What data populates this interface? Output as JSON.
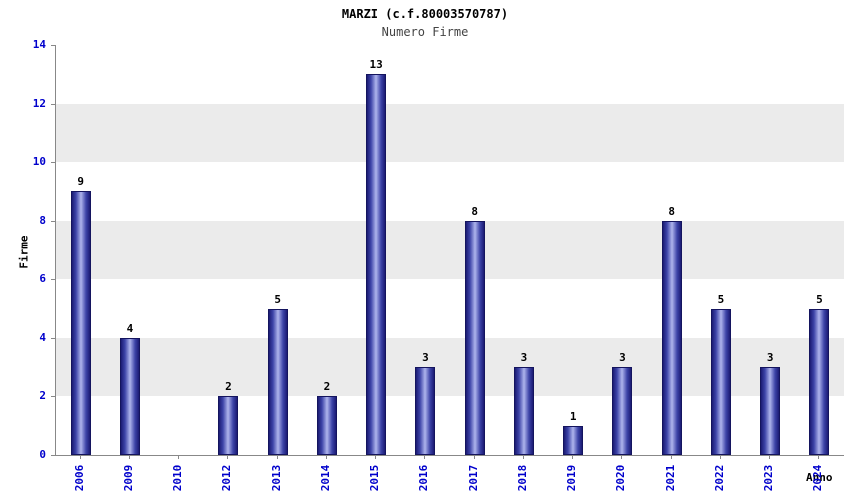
{
  "chart_data": {
    "type": "bar",
    "title": "MARZI (c.f.80003570787)",
    "subtitle": "Numero Firme",
    "xlabel": "Anno",
    "ylabel": "Firme",
    "categories": [
      "2006",
      "2009",
      "2010",
      "2012",
      "2013",
      "2014",
      "2015",
      "2016",
      "2017",
      "2018",
      "2019",
      "2020",
      "2021",
      "2022",
      "2023",
      "2024"
    ],
    "values": [
      9,
      4,
      0,
      2,
      5,
      2,
      13,
      3,
      8,
      3,
      1,
      3,
      8,
      5,
      3,
      5
    ],
    "ylim": [
      0,
      14
    ],
    "yticks": [
      0,
      2,
      4,
      6,
      8,
      10,
      12,
      14
    ],
    "legend": "none",
    "grid": "alternating-horizontal-bands",
    "colors": {
      "tick_label": "#0000cc",
      "value_label": "#000000",
      "subtitle_color": "#444444",
      "axis_line": "#888888",
      "band_gray": "#ebebeb",
      "band_white": "#ffffff",
      "bar_border": "#14145e",
      "bar_dark": "#1b1b74",
      "bar_mid": "#3d44a8",
      "bar_light": "#aeb4ec"
    }
  }
}
